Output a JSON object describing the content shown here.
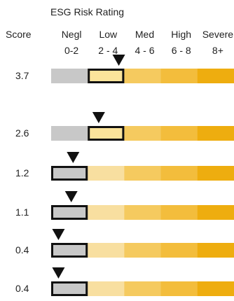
{
  "chart_data": {
    "type": "bar",
    "title": "ESG Risk Rating",
    "score_header": "Score",
    "categories": [
      {
        "name": "Negl",
        "range": "0-2",
        "min": 0,
        "max": 2,
        "color": "#c8c8c8",
        "highlight_color": "#c8c8c8"
      },
      {
        "name": "Low",
        "range": "2 - 4",
        "min": 2,
        "max": 4,
        "color": "#f8dfa0",
        "highlight_color": "#fbe49b"
      },
      {
        "name": "Med",
        "range": "4 - 6",
        "min": 4,
        "max": 6,
        "color": "#f5ca5f",
        "highlight_color": "#f5ca5f"
      },
      {
        "name": "High",
        "range": "6 - 8",
        "min": 6,
        "max": 8,
        "color": "#f3bd3c",
        "highlight_color": "#f3bd3c"
      },
      {
        "name": "Severe",
        "range": "8+",
        "min": 8,
        "max": 10,
        "color": "#eead0f",
        "highlight_color": "#eead0f"
      }
    ],
    "rows": [
      {
        "score": 3.7,
        "label": "3.7",
        "band": 1
      },
      {
        "score": 2.6,
        "label": "2.6",
        "band": 1
      },
      {
        "score": 1.2,
        "label": "1.2",
        "band": 0
      },
      {
        "score": 1.1,
        "label": "1.1",
        "band": 0
      },
      {
        "score": 0.4,
        "label": "0.4",
        "band": 0
      },
      {
        "score": 0.4,
        "label": "0.4",
        "band": 0
      }
    ],
    "xlim": [
      0,
      10
    ],
    "marker": "triangle-down",
    "outline_color": "#111111"
  }
}
